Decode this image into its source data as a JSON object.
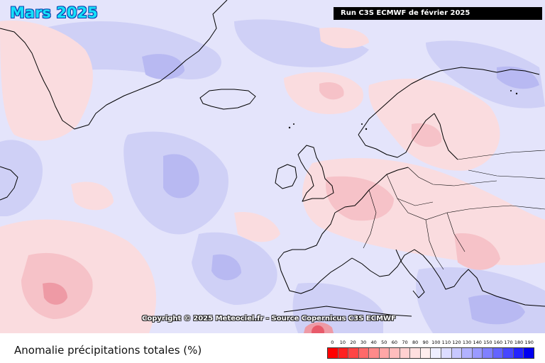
{
  "title": "Mars 2025",
  "run": "Run C3S ECMWF de février 2025",
  "copyright": "Copyright © 2025 Meteociel.fr - Source Copernicus C3S ECMWF",
  "legend_title": "Anomalie précipitations totales (%)",
  "scale": {
    "labels": [
      "0",
      "10",
      "20",
      "30",
      "40",
      "50",
      "60",
      "70",
      "80",
      "90",
      "100",
      "110",
      "120",
      "130",
      "140",
      "150",
      "160",
      "170",
      "180",
      "190"
    ],
    "colors": [
      "#ff0000",
      "#ff2020",
      "#ff4545",
      "#ff6a6a",
      "#ff8a8a",
      "#ffa6a6",
      "#ffbdbd",
      "#ffd0d0",
      "#ffe0e0",
      "#ffeeee",
      "#eeeeff",
      "#dcdcff",
      "#c8c8ff",
      "#b2b2ff",
      "#9a9aff",
      "#8080ff",
      "#6464ff",
      "#4646ff",
      "#2424ff",
      "#0000f0"
    ]
  }
}
